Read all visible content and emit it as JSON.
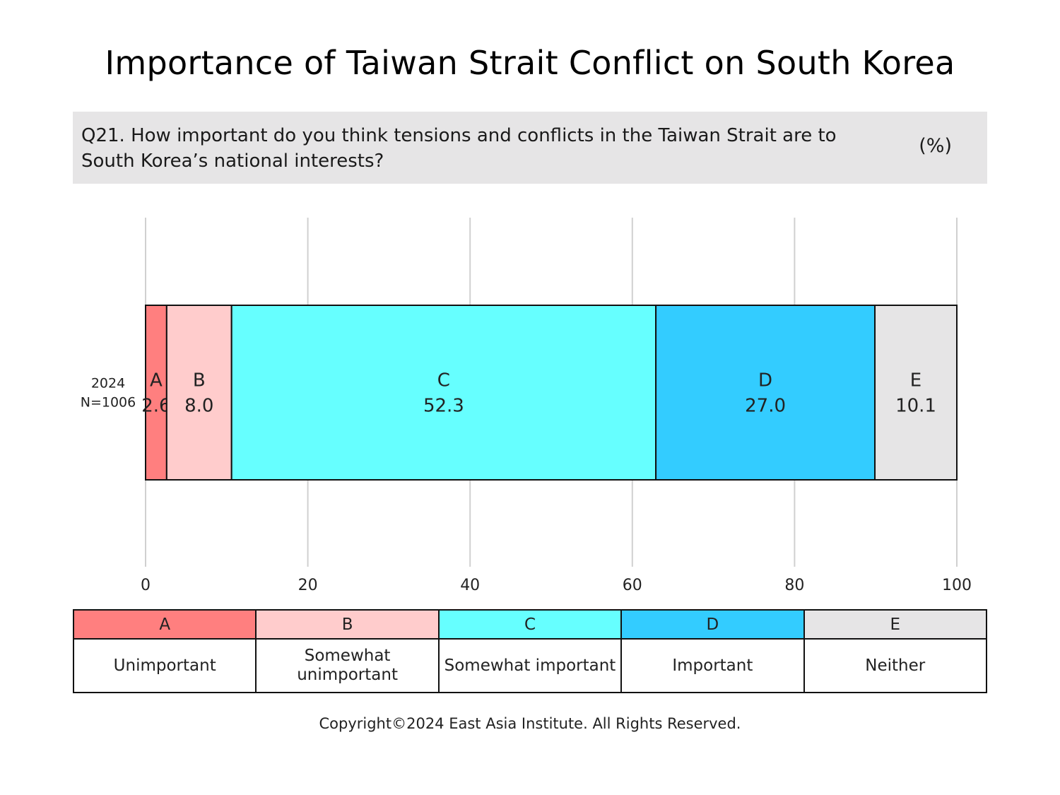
{
  "title": "Importance of Taiwan Strait Conflict on South Korea",
  "question": "Q21. How important do you think tensions and conflicts in the Taiwan Strait are to South Korea’s national interests?",
  "unit": "(%)",
  "chart_data": {
    "type": "bar",
    "orientation": "horizontal-stacked",
    "categories": [
      "2024"
    ],
    "category_sublabels": [
      "N=1006"
    ],
    "series": [
      {
        "name": "A",
        "values": [
          2.6
        ],
        "color": "#ff7f7f"
      },
      {
        "name": "B",
        "values": [
          8.0
        ],
        "color": "#ffcccc"
      },
      {
        "name": "C",
        "values": [
          52.3
        ],
        "color": "#66ffff"
      },
      {
        "name": "D",
        "values": [
          27.0
        ],
        "color": "#33ccff"
      },
      {
        "name": "E",
        "values": [
          10.1
        ],
        "color": "#e6e5e6"
      }
    ],
    "value_labels": [
      "2.6",
      "8.0",
      "52.3",
      "27.0",
      "10.1"
    ],
    "xlim": [
      0,
      100
    ],
    "xticks": [
      "0",
      "20",
      "40",
      "60",
      "80",
      "100"
    ],
    "grid": true
  },
  "legend": {
    "items": [
      {
        "code": "A",
        "label": "Unimportant",
        "color": "#ff7f7f"
      },
      {
        "code": "B",
        "label": "Somewhat unimportant",
        "color": "#ffcccc"
      },
      {
        "code": "C",
        "label": "Somewhat important",
        "color": "#66ffff"
      },
      {
        "code": "D",
        "label": "Important",
        "color": "#33ccff"
      },
      {
        "code": "E",
        "label": "Neither",
        "color": "#e6e5e6"
      }
    ]
  },
  "copyright": "Copyright©2024 East Asia Institute. All Rights Reserved."
}
